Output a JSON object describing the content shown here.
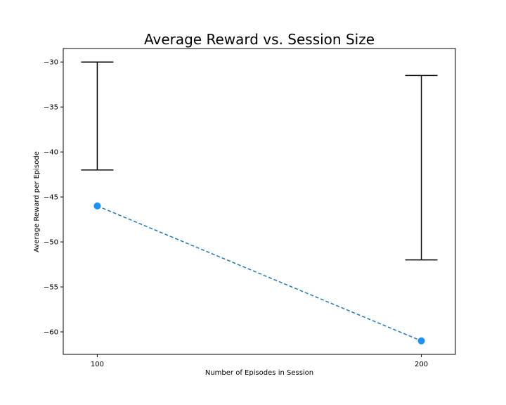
{
  "chart_data": {
    "type": "line",
    "title": "Average Reward vs. Session Size",
    "xlabel": "Number of Episodes in Session",
    "ylabel": "Average Reward per Episode",
    "x": [
      100,
      200
    ],
    "series": [
      {
        "values": [
          -46.0,
          -61.0
        ],
        "color": "#1f77b4",
        "marker_color": "#1e90ff",
        "line_style": "dashed"
      }
    ],
    "error_bars": [
      {
        "x": 100,
        "low": -42.0,
        "high": -30.0
      },
      {
        "x": 200,
        "low": -52.0,
        "high": -31.5
      }
    ],
    "xlim": [
      89.5,
      210.5
    ],
    "ylim": [
      -62.5,
      -28.5
    ],
    "x_ticks": [
      100,
      200
    ],
    "y_ticks": [
      -30,
      -35,
      -40,
      -45,
      -50,
      -55,
      -60
    ],
    "grid": false,
    "legend": "none"
  }
}
